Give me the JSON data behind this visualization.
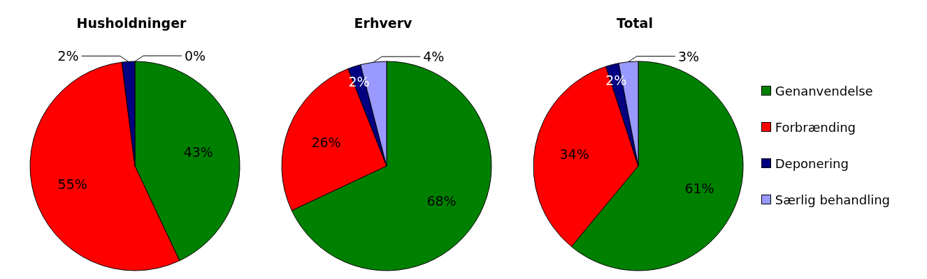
{
  "chart_data": [
    {
      "type": "pie",
      "title": "Husholdninger",
      "categories": [
        null,
        null,
        null,
        null
      ],
      "values": [
        43,
        55,
        2,
        0
      ],
      "value_labels": [
        "43%",
        "55%",
        "2%",
        "0%"
      ],
      "colors": [
        "#008000",
        "#ff0000",
        "#000080",
        "#9999ff"
      ]
    },
    {
      "type": "pie",
      "title": "Erhverv",
      "categories": [
        null,
        null,
        null,
        null
      ],
      "values": [
        68,
        26,
        2,
        4
      ],
      "value_labels": [
        "68%",
        "26%",
        "2%",
        "4%"
      ],
      "colors": [
        "#008000",
        "#ff0000",
        "#000080",
        "#9999ff"
      ]
    },
    {
      "type": "pie",
      "title": "Total",
      "categories": [
        "Genanvendelse",
        "Forbrænding",
        "Deponering",
        "Særlig behandling"
      ],
      "values": [
        61,
        34,
        2,
        3
      ],
      "value_labels": [
        "61%",
        "34%",
        "2%",
        "3%"
      ],
      "colors": [
        "#008000",
        "#ff0000",
        "#000080",
        "#9999ff"
      ],
      "legend": "right"
    }
  ]
}
